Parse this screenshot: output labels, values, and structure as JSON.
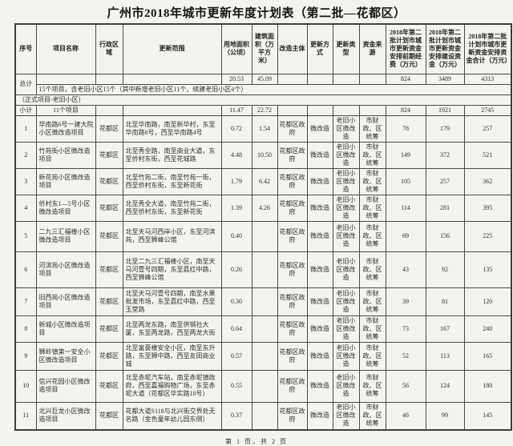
{
  "page": {
    "title": "广州市2018年城市更新年度计划表（第二批—花都区）",
    "footer": "第 1 页，共 2 页"
  },
  "table": {
    "headers": {
      "no": "序号",
      "name": "项目名称",
      "district": "行政区域",
      "scope": "更新范围",
      "land_area": "用地面积（公顷）",
      "building_area": "建筑面积（万平方米）",
      "subject": "改造主体",
      "method": "更新方式",
      "type": "更新类型",
      "fund_source": "资金来源",
      "pre_fund": "2018年第二批计划市城市更新资金安排前期经费（万元）",
      "construction_fund": "2018年第二批计划市城市更新资金安排建设资金（万元）",
      "total_fund": "2018年第二批计划市城市更新资金安排资金合计（万元）"
    },
    "total": {
      "label": "总计",
      "land_area": "20.53",
      "building_area": "45.09",
      "pre_fund": "824",
      "construction_fund": "3489",
      "total_fund": "4313",
      "note": "15个项目，含老旧小区15个（其中新增老旧小区11个，续建老旧小区4个）"
    },
    "section_title": "（正式项目-老旧小区）",
    "subtotal": {
      "label": "小计",
      "name": "11个项目",
      "land_area": "11.47",
      "building_area": "22.72",
      "pre_fund": "824",
      "construction_fund": "1921",
      "total_fund": "2745"
    },
    "rows": [
      {
        "no": "1",
        "name": "华南路6号一建大院小区微改造项目",
        "district": "花都区",
        "scope": "北至华南路，南至新华村，东至华南路8号，西至华南路4号",
        "land_area": "0.72",
        "building_area": "1.54",
        "subject": "花都区政府",
        "method": "微改造",
        "type": "老旧小区微改造",
        "fund_source": "市财政、区统筹",
        "pre_fund": "78",
        "construction_fund": "179",
        "total_fund": "257"
      },
      {
        "no": "2",
        "name": "竹苑街小区微改造项目",
        "district": "花都区",
        "scope": "北至秀全路，南至商业大道，东至侨村东街，西至花城路",
        "land_area": "4.48",
        "building_area": "10.50",
        "subject": "花都区政府",
        "method": "微改造",
        "type": "老旧小区微改造",
        "fund_source": "市财政、区统筹",
        "pre_fund": "149",
        "construction_fund": "372",
        "total_fund": "521"
      },
      {
        "no": "3",
        "name": "新花苑小区微改造项目",
        "district": "花都区",
        "scope": "北至竹苑二街，南至竹苑一街，西至侨村东街，东至新花街",
        "land_area": "1.79",
        "building_area": "6.42",
        "subject": "花都区政府",
        "method": "微改造",
        "type": "老旧小区微改造",
        "fund_source": "市财政、区统筹",
        "pre_fund": "105",
        "construction_fund": "257",
        "total_fund": "362"
      },
      {
        "no": "4",
        "name": "侨村东1—5号小区微改造项目",
        "district": "花都区",
        "scope": "北至秀全大道，南至竹苑二街，西至侨村东街，东至新花街",
        "land_area": "1.39",
        "building_area": "4.26",
        "subject": "花都区政府",
        "method": "微改造",
        "type": "老旧小区微改造",
        "fund_source": "市财政、区统筹",
        "pre_fund": "114",
        "construction_fund": "281",
        "total_fund": "395"
      },
      {
        "no": "5",
        "name": "二九三汇福楼小区微改造项目",
        "district": "花都区",
        "scope": "北至天马河西岸小区，东至河滨苑，西至狮峰公馆",
        "land_area": "0.40",
        "building_area": "",
        "subject": "花都区政府",
        "method": "微改造",
        "type": "老旧小区微改造",
        "fund_source": "市财政、区统筹",
        "pre_fund": "69",
        "construction_fund": "156",
        "total_fund": "225"
      },
      {
        "no": "6",
        "name": "河滨苑小区微改造项目",
        "district": "花都区",
        "scope": "北至二九三汇福楼小区，南至天马河壹号四期，东至荔红中路，西至狮峰公馆",
        "land_area": "0.26",
        "building_area": "",
        "subject": "花都区政府",
        "method": "微改造",
        "type": "老旧小区微改造",
        "fund_source": "市财政、区统筹",
        "pre_fund": "43",
        "construction_fund": "92",
        "total_fund": "135"
      },
      {
        "no": "7",
        "name": "旧西苑小区微改造项目",
        "district": "花都区",
        "scope": "北至天马河壹号四期，南至水果批发市场，东至荔红中路，西至玉堂路",
        "land_area": "0.30",
        "building_area": "",
        "subject": "花都区政府",
        "method": "微改造",
        "type": "老旧小区微改造",
        "fund_source": "市财政、区统筹",
        "pre_fund": "39",
        "construction_fund": "81",
        "total_fund": "120"
      },
      {
        "no": "8",
        "name": "新城小区微改造项目",
        "district": "花都区",
        "scope": "北至两龙东路，南至供销社大厦，东至两龙路，西至两龙大街",
        "land_area": "0.64",
        "building_area": "",
        "subject": "花都区政府",
        "method": "微改造",
        "type": "老旧小区微改造",
        "fund_source": "市财政、区统筹",
        "pre_fund": "73",
        "construction_fund": "167",
        "total_fund": "240"
      },
      {
        "no": "9",
        "name": "狮岭镇第一安全小区微改造项目",
        "district": "花都区",
        "scope": "北至富豪楼安全小区，南至东升路，东至狮中路，西至友田商业城",
        "land_area": "0.57",
        "building_area": "",
        "subject": "花都区政府",
        "method": "微改造",
        "type": "老旧小区微改造",
        "fund_source": "市财政、区统筹",
        "pre_fund": "52",
        "construction_fund": "113",
        "total_fund": "165"
      },
      {
        "no": "10",
        "name": "信兴花园小区微改造项目",
        "district": "花都区",
        "scope": "北至赤坭汽车站，南至赤坭镇政府，西至嘉福购物广场，东至赤坭大道（花都区华实路10号）",
        "land_area": "0.55",
        "building_area": "",
        "subject": "花都区政府",
        "method": "微改造",
        "type": "老旧小区微改造",
        "fund_source": "市财政、区统筹",
        "pre_fund": "56",
        "construction_fund": "124",
        "total_fund": "180"
      },
      {
        "no": "11",
        "name": "北兴巨龙小区微改造项目",
        "district": "花都区",
        "scope": "花都大道S118与北兴街交界处无名路（金色童年幼儿园东侧）",
        "land_area": "0.37",
        "building_area": "",
        "subject": "花都区政府",
        "method": "微改造",
        "type": "老旧小区微改造",
        "fund_source": "市财政、区统筹",
        "pre_fund": "46",
        "construction_fund": "99",
        "total_fund": "145"
      }
    ]
  }
}
